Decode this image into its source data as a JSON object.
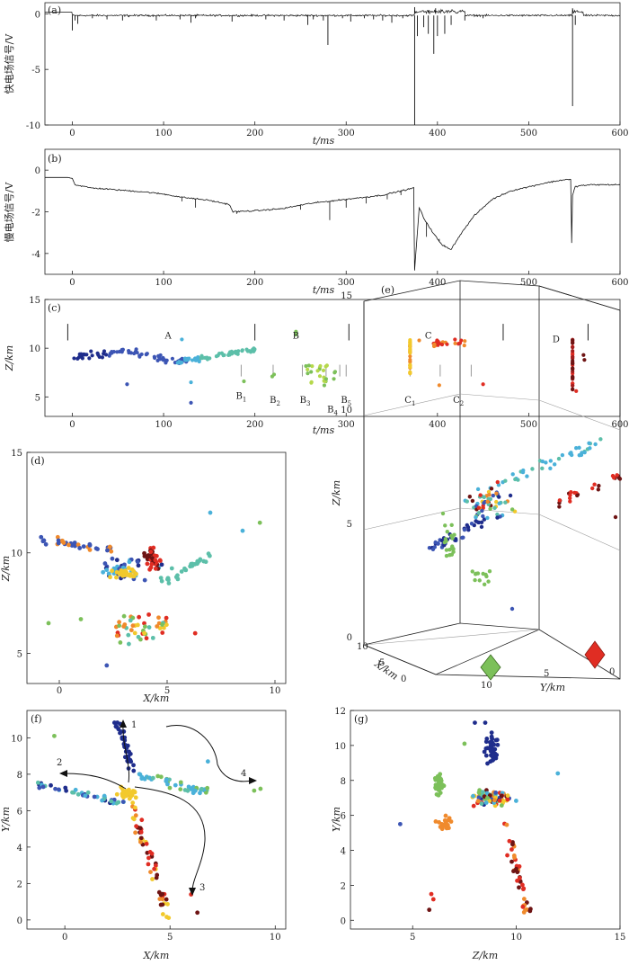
{
  "chart_data": [
    {
      "type": "line",
      "panel_label": "(a)",
      "ylabel": "快电场信号/V",
      "xlabel": "t/ms",
      "xlim": [
        -30,
        600
      ],
      "ylim": [
        -10,
        1
      ],
      "xticks": [
        "0",
        "100",
        "200",
        "300",
        "400",
        "500",
        "600"
      ],
      "yticks": [
        "0",
        "-5",
        "-10"
      ],
      "baseline": -0.15,
      "pulses": [
        [
          0,
          -1.5
        ],
        [
          3,
          -0.6
        ],
        [
          6,
          -0.9
        ],
        [
          22,
          -0.4
        ],
        [
          38,
          -0.5
        ],
        [
          55,
          -0.6
        ],
        [
          62,
          -0.3
        ],
        [
          92,
          -0.6
        ],
        [
          118,
          -0.5
        ],
        [
          130,
          -0.8
        ],
        [
          135,
          -0.4
        ],
        [
          175,
          -0.7
        ],
        [
          212,
          -0.5
        ],
        [
          232,
          -0.6
        ],
        [
          258,
          -1.0
        ],
        [
          264,
          -0.5
        ],
        [
          275,
          -0.6
        ],
        [
          280,
          -2.8
        ],
        [
          296,
          -0.4
        ],
        [
          305,
          -0.7
        ],
        [
          320,
          -0.4
        ],
        [
          330,
          -0.5
        ],
        [
          340,
          -0.6
        ],
        [
          350,
          -0.8
        ],
        [
          362,
          -0.4
        ],
        [
          375,
          -10.0
        ],
        [
          378,
          -2.0
        ],
        [
          385,
          -1.2
        ],
        [
          390,
          -1.8
        ],
        [
          396,
          -3.6
        ],
        [
          400,
          -2.0
        ],
        [
          408,
          -1.8
        ],
        [
          415,
          -1.0
        ],
        [
          430,
          -0.6
        ],
        [
          450,
          -0.4
        ],
        [
          548,
          -8.3
        ],
        [
          551,
          -1.0
        ]
      ],
      "spikes_up": [
        [
          375,
          0.6
        ],
        [
          398,
          0.5
        ],
        [
          548,
          0.5
        ]
      ]
    },
    {
      "type": "line",
      "panel_label": "(b)",
      "ylabel": "慢电场信号/V",
      "xlabel": "t/ms",
      "xlim": [
        -30,
        600
      ],
      "ylim": [
        -5,
        1
      ],
      "xticks": [
        "0",
        "100",
        "200",
        "300",
        "400",
        "500",
        "600"
      ],
      "yticks": [
        "0",
        "-2",
        "-4"
      ],
      "x": [
        -30,
        -5,
        0,
        3,
        20,
        50,
        80,
        100,
        120,
        150,
        172,
        176,
        200,
        230,
        260,
        300,
        340,
        370,
        374,
        375,
        380,
        385,
        395,
        405,
        415,
        425,
        440,
        460,
        480,
        500,
        520,
        540,
        546,
        547,
        548,
        551,
        555,
        570,
        600
      ],
      "values": [
        -0.35,
        -0.35,
        -0.4,
        -0.7,
        -0.85,
        -0.95,
        -1.05,
        -1.15,
        -1.3,
        -1.45,
        -1.65,
        -2.0,
        -1.95,
        -1.85,
        -1.6,
        -1.4,
        -1.2,
        -0.9,
        -0.85,
        -4.8,
        -1.8,
        -2.3,
        -3.0,
        -3.6,
        -3.8,
        -3.1,
        -2.2,
        -1.4,
        -1.0,
        -0.8,
        -0.6,
        -0.45,
        -0.45,
        -3.5,
        -1.2,
        -0.8,
        -0.75,
        -0.7,
        -0.7
      ],
      "spikes": [
        [
          120,
          -1.5
        ],
        [
          135,
          -1.8
        ],
        [
          180,
          -2.1
        ],
        [
          250,
          -1.9
        ],
        [
          282,
          -2.4
        ],
        [
          300,
          -1.8
        ],
        [
          322,
          -1.6
        ],
        [
          345,
          -1.4
        ],
        [
          360,
          -1.2
        ],
        [
          388,
          -3.2
        ],
        [
          402,
          -3.3
        ],
        [
          408,
          -3.6
        ]
      ]
    },
    {
      "type": "scatter",
      "panel_label": "(c)",
      "ylabel": "Z/km",
      "xlabel": "t/ms",
      "xlim": [
        -30,
        600
      ],
      "ylim": [
        3,
        15
      ],
      "xticks": [
        "0",
        "100",
        "200",
        "300",
        "400",
        "500",
        "600"
      ],
      "yticks": [
        "5",
        "10",
        "15"
      ],
      "stage_markers": [
        -5,
        200,
        303,
        472,
        565
      ],
      "sub_markers": [
        185,
        220,
        252,
        278,
        293,
        300,
        370,
        403,
        437
      ],
      "labels": [
        {
          "text": "A",
          "x": 105,
          "y": 11
        },
        {
          "text": "B",
          "x": 245,
          "y": 11
        },
        {
          "text": "C",
          "x": 390,
          "y": 11
        },
        {
          "text": "D",
          "x": 530,
          "y": 10.6
        },
        {
          "text": "B1",
          "x": 185,
          "y": 4.8
        },
        {
          "text": "B2",
          "x": 222,
          "y": 4.4
        },
        {
          "text": "B3",
          "x": 255,
          "y": 4.4
        },
        {
          "text": "B4",
          "x": 285,
          "y": 3.4
        },
        {
          "text": "B5",
          "x": 300,
          "y": 4.4
        },
        {
          "text": "C1",
          "x": 370,
          "y": 4.4
        },
        {
          "text": "C2",
          "x": 423,
          "y": 4.4
        }
      ],
      "label_text": {
        "A": "A",
        "B": "B",
        "C": "C",
        "D": "D",
        "B1": "B1",
        "B2": "B2",
        "B3": "B3",
        "B4": "B4",
        "B5": "B5",
        "C1": "C1",
        "C2": "C2"
      }
    },
    {
      "type": "scatter",
      "panel_label": "(d)",
      "xlabel": "X/km",
      "ylabel": "Z/km",
      "xlim": [
        -1.5,
        10.5
      ],
      "ylim": [
        3.5,
        15
      ],
      "xticks": [
        "0",
        "5",
        "10"
      ],
      "yticks": [
        "5",
        "10",
        "15"
      ]
    },
    {
      "type": "scatter",
      "panel_label": "(e)",
      "xlabel": "X/km",
      "ylabel": "Y/km",
      "zlabel": "Z/km",
      "zticks": [
        "0",
        "5",
        "10",
        "15"
      ],
      "xticks": [
        "10",
        "5",
        "0"
      ],
      "yticks": [
        "10",
        "5",
        "0"
      ]
    },
    {
      "type": "scatter",
      "panel_label": "(f)",
      "xlabel": "X/km",
      "ylabel": "Y/km",
      "xlim": [
        -1.8,
        10.5
      ],
      "ylim": [
        -0.5,
        11.5
      ],
      "xticks": [
        "0",
        "5",
        "10"
      ],
      "yticks": [
        "0",
        "2",
        "4",
        "6",
        "8",
        "10"
      ],
      "branches": [
        "1",
        "2",
        "3",
        "4"
      ]
    },
    {
      "type": "scatter",
      "panel_label": "(g)",
      "xlabel": "Z/km",
      "ylabel": "Y/km",
      "xlim": [
        2,
        15
      ],
      "ylim": [
        -0.5,
        12
      ],
      "xticks": [
        "5",
        "10",
        "15"
      ],
      "yticks": [
        "0",
        "2",
        "4",
        "6",
        "8",
        "10",
        "12"
      ]
    }
  ],
  "colors": {
    "darkblue": "#1f2d8c",
    "blue": "#3c55b4",
    "cyan": "#4ab1d9",
    "teal": "#5cbfa9",
    "green": "#7cc05a",
    "yellow": "#f2c92c",
    "orange": "#f08a2c",
    "red": "#e02d23",
    "darkred": "#6e1414"
  }
}
